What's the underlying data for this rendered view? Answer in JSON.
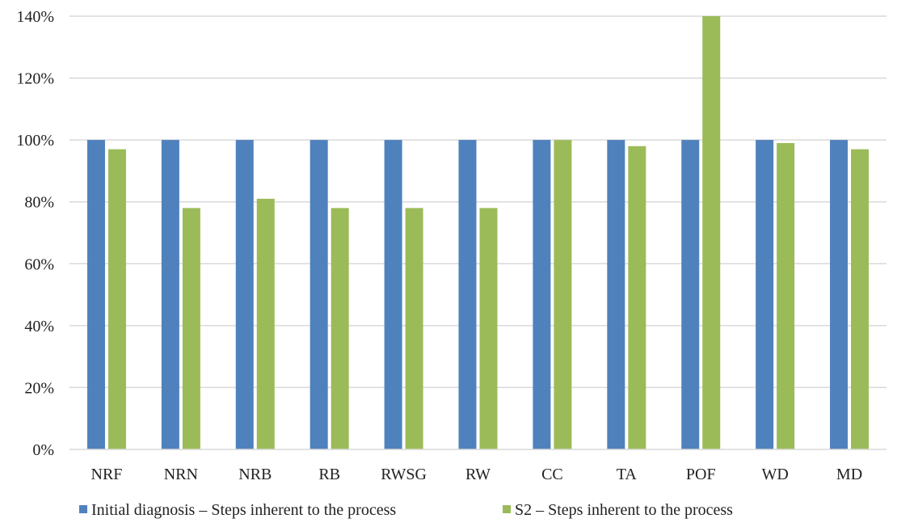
{
  "chart_data": {
    "type": "bar",
    "categories": [
      "NRF",
      "NRN",
      "NRB",
      "RB",
      "RWSG",
      "RW",
      "CC",
      "TA",
      "POF",
      "WD",
      "MD"
    ],
    "series": [
      {
        "name": "Initial diagnosis – Steps inherent to the process",
        "color": "#4f81bd",
        "values": [
          100,
          100,
          100,
          100,
          100,
          100,
          100,
          100,
          100,
          100,
          100
        ]
      },
      {
        "name": "S2 – Steps inherent to the process",
        "color": "#9bbb59",
        "values": [
          97,
          78,
          81,
          78,
          78,
          78,
          100,
          98,
          140,
          99,
          97
        ]
      }
    ],
    "y_ticks": [
      "0%",
      "20%",
      "40%",
      "60%",
      "80%",
      "100%",
      "120%",
      "140%"
    ],
    "ylim": [
      0,
      140
    ],
    "grid": true,
    "legend_position": "bottom-left",
    "title": "",
    "xlabel": "",
    "ylabel": ""
  }
}
